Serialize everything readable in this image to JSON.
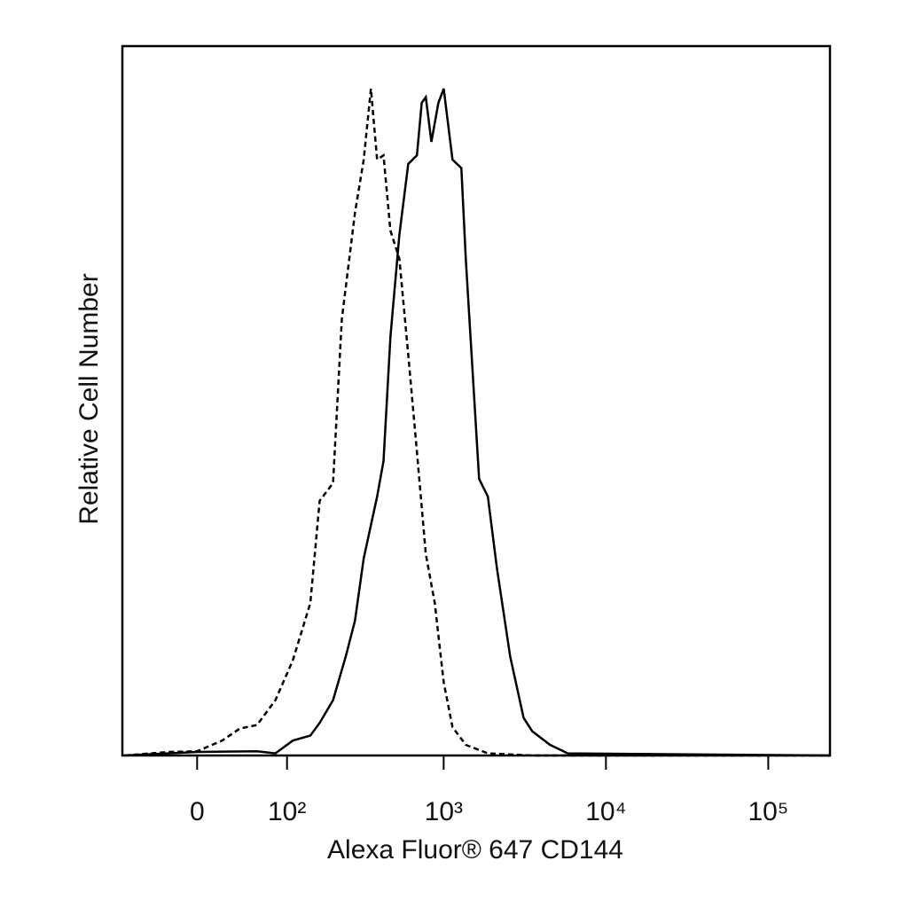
{
  "chart_data": {
    "type": "line",
    "x_label": "Alexa Fluor® 647 CD144",
    "y_label": "Relative Cell Number",
    "xscale": "biexponential",
    "xlim": [
      -77,
      240000
    ],
    "xticks": [
      0,
      {
        "value": 100,
        "label": "10²"
      },
      {
        "value": 1000,
        "label": "10³"
      },
      {
        "value": 10000,
        "label": "10⁴"
      },
      {
        "value": 100000,
        "label": "10⁵"
      }
    ],
    "ylim": [
      0,
      100
    ],
    "series": [
      {
        "color": "#000000",
        "style": "dashed",
        "x": [
          -74,
          -25,
          0,
          22,
          39,
          58,
          82,
          110,
          145,
          167,
          204,
          232,
          281,
          319,
          354,
          387,
          424,
          468,
          532,
          604,
          684,
          776,
          881,
          1000,
          1134,
          1369,
          1874,
          3520,
          240000
        ],
        "values": [
          0,
          0.5,
          0.6,
          2.1,
          3.8,
          4.3,
          7.8,
          13.4,
          21.5,
          35.9,
          38.4,
          61.5,
          76.5,
          84,
          94,
          84,
          84.6,
          74,
          70,
          56.5,
          42.8,
          28.4,
          21.5,
          10.3,
          4,
          1.5,
          0.3,
          0,
          0
        ]
      },
      {
        "color": "#000000",
        "style": "solid",
        "x": [
          -74,
          0,
          58,
          82,
          110,
          145,
          167,
          204,
          246,
          281,
          319,
          387,
          424,
          468,
          532,
          604,
          684,
          732,
          776,
          840,
          928,
          1000,
          1134,
          1286,
          1369,
          1654,
          1874,
          2127,
          2570,
          3110,
          3520,
          4525,
          5820,
          240000
        ],
        "values": [
          0,
          0.5,
          0.6,
          0.3,
          2.1,
          2.8,
          4.6,
          7.8,
          14,
          19,
          27.8,
          36.5,
          41.5,
          59,
          73.4,
          83.4,
          84.6,
          92,
          92.8,
          86.5,
          92,
          94,
          84,
          82.8,
          70,
          39,
          36.5,
          26.5,
          14,
          5.3,
          3.4,
          1.5,
          0.3,
          0
        ]
      }
    ]
  }
}
